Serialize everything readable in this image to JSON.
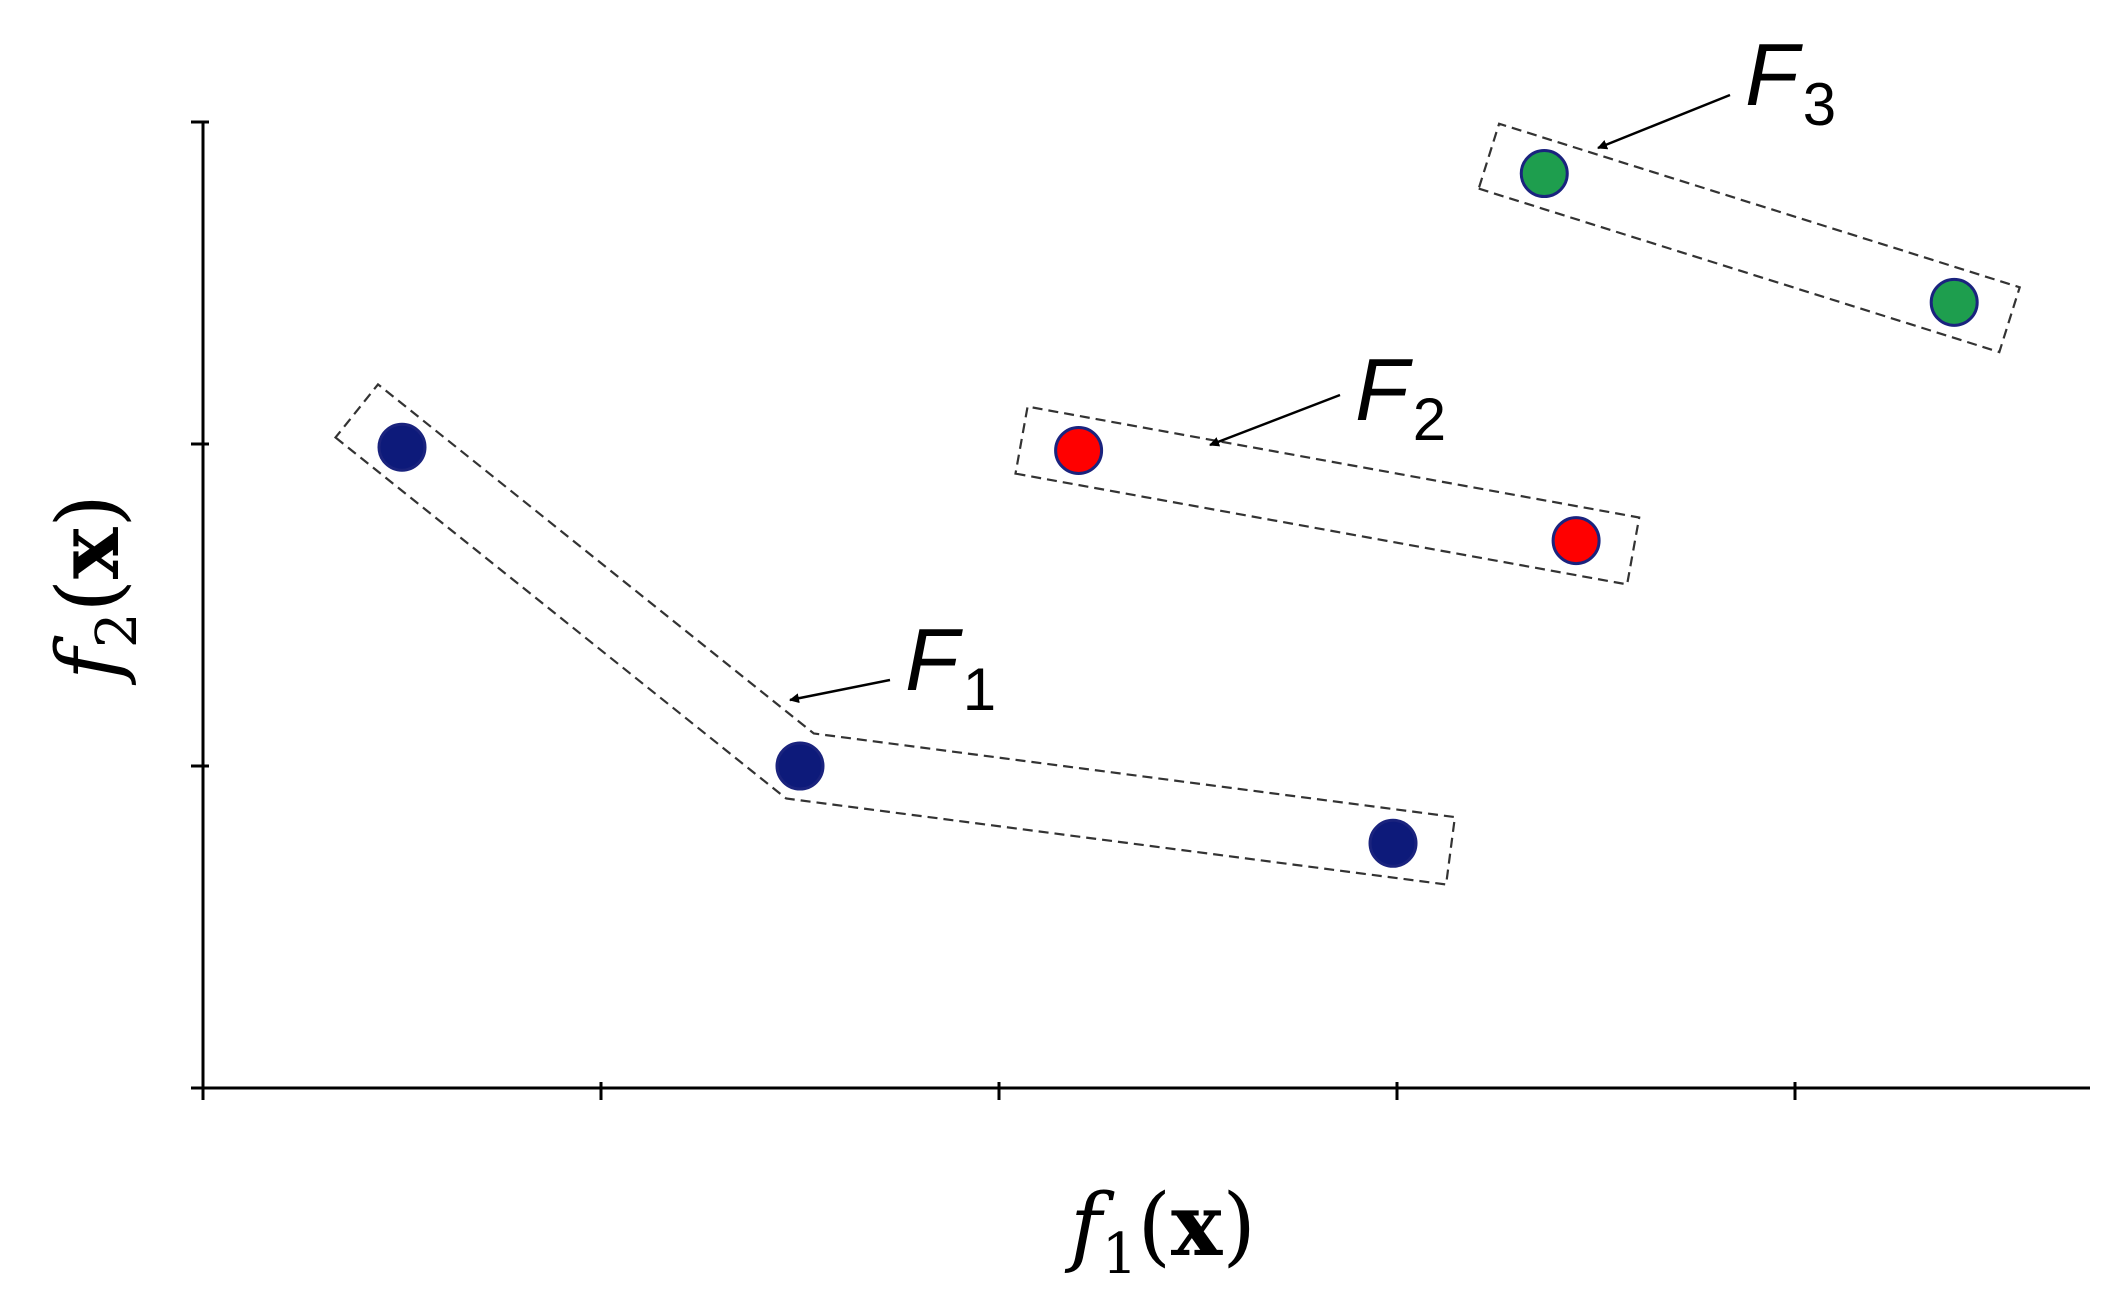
{
  "chart_data": {
    "type": "scatter",
    "xlabel": {
      "func": "f",
      "sub": "1",
      "open": "(",
      "var": "x",
      "close": ")"
    },
    "ylabel": {
      "func": "f",
      "sub": "2",
      "open": "(",
      "var": "x",
      "close": ")"
    },
    "xlim": [
      0,
      4.75
    ],
    "ylim": [
      0,
      3
    ],
    "x_ticks": [
      0,
      1,
      2,
      3,
      4
    ],
    "y_ticks": [
      0,
      1,
      2,
      3
    ],
    "grid": false,
    "legend": "none",
    "series": [
      {
        "label": {
          "main": "F",
          "sub": "1"
        },
        "color": "#0d1a7a",
        "points": [
          [
            0.5,
            1.99
          ],
          [
            1.5,
            1.0
          ],
          [
            2.99,
            0.76
          ]
        ]
      },
      {
        "label": {
          "main": "F",
          "sub": "2"
        },
        "color": "#ff0000",
        "points": [
          [
            2.2,
            1.98
          ],
          [
            3.45,
            1.7
          ]
        ]
      },
      {
        "label": {
          "main": "F",
          "sub": "3"
        },
        "color": "#1e9e4e",
        "points": [
          [
            3.37,
            2.84
          ],
          [
            4.4,
            2.44
          ]
        ]
      }
    ]
  }
}
